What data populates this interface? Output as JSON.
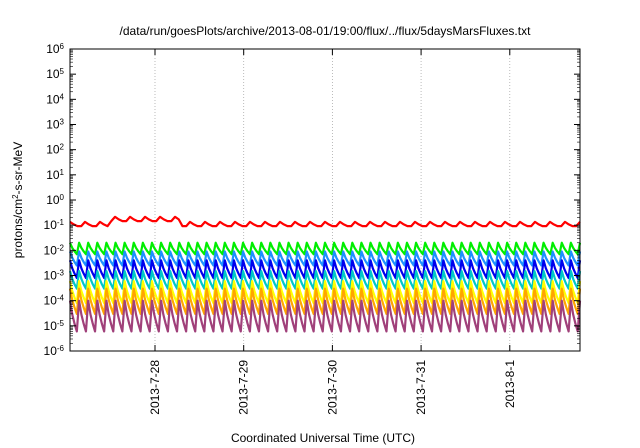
{
  "chart_data": {
    "type": "line",
    "title": "/data/run/goesPlots/archive/2013-08-01/19:00/flux/../flux/5daysMarsFluxes.txt",
    "xlabel": "Coordinated Universal Time (UTC)",
    "ylabel": {
      "base": "protons/cm",
      "sup": "2",
      "rest": "-s-sr-MeV"
    },
    "x_range": [
      "2013-07-27T01:00",
      "2013-08-01T19:00"
    ],
    "x_ticks": [
      "2013-7-28",
      "2013-7-29",
      "2013-7-30",
      "2013-7-31",
      "2013-8-1"
    ],
    "y_scale": "log",
    "ylim": [
      1e-06,
      1000000.0
    ],
    "y_ticks": [
      {
        "base": "10",
        "exp": "-6",
        "value": 1e-06
      },
      {
        "base": "10",
        "exp": "-5",
        "value": 1e-05
      },
      {
        "base": "10",
        "exp": "-4",
        "value": 0.0001
      },
      {
        "base": "10",
        "exp": "-3",
        "value": 0.001
      },
      {
        "base": "10",
        "exp": "-2",
        "value": 0.01
      },
      {
        "base": "10",
        "exp": "-1",
        "value": 0.1
      },
      {
        "base": "10",
        "exp": "0",
        "value": 1
      },
      {
        "base": "10",
        "exp": "1",
        "value": 10
      },
      {
        "base": "10",
        "exp": "2",
        "value": 100
      },
      {
        "base": "10",
        "exp": "3",
        "value": 1000
      },
      {
        "base": "10",
        "exp": "4",
        "value": 10000
      },
      {
        "base": "10",
        "exp": "5",
        "value": 100000
      },
      {
        "base": "10",
        "exp": "6",
        "value": 1000000
      }
    ],
    "grid": true,
    "legend": "none",
    "series": [
      {
        "color": "#ff0000",
        "peak": 0.15,
        "trough": 0.07,
        "cycles": 34
      },
      {
        "color": "#00ee00",
        "peak": 0.02,
        "trough": 0.007,
        "cycles": 56
      },
      {
        "color": "#1e90ff",
        "peak": 0.009,
        "trough": 0.0025,
        "cycles": 56
      },
      {
        "color": "#0000ee",
        "peak": 0.004,
        "trough": 0.0008,
        "cycles": 56
      },
      {
        "color": "#00c8c8",
        "peak": 0.0015,
        "trough": 0.0003,
        "cycles": 56
      },
      {
        "color": "#ffff00",
        "peak": 0.0006,
        "trough": 8e-05,
        "cycles": 56
      },
      {
        "color": "#ffa500",
        "peak": 0.0003,
        "trough": 3e-05,
        "cycles": 56
      },
      {
        "color": "#a0407a",
        "peak": 0.0001,
        "trough": 6e-06,
        "cycles": 56
      }
    ]
  }
}
